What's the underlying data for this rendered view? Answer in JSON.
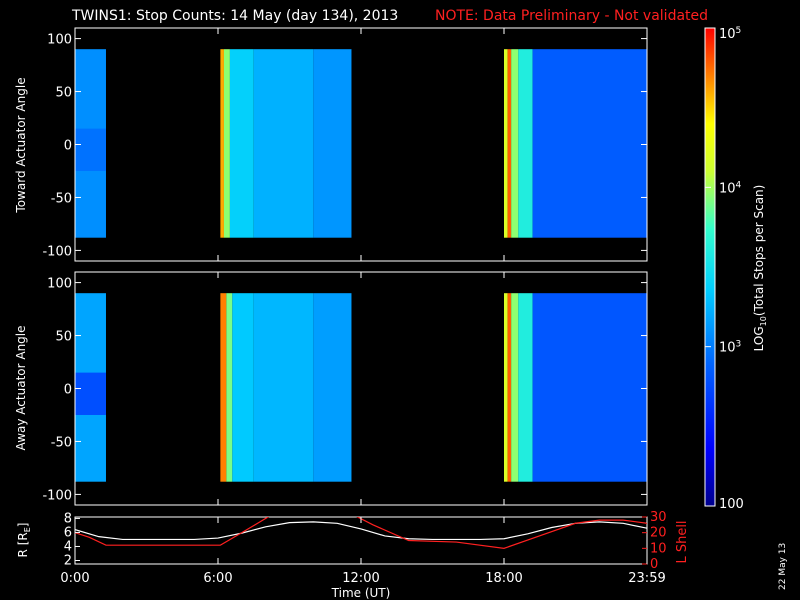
{
  "title": {
    "main": "TWINS1: Stop Counts: 14 May (day 134), 2013",
    "note": "NOTE: Data Preliminary - Not validated"
  },
  "date_stamp": "22 May 13",
  "colors": {
    "background": "#000000",
    "note": "#ff2020",
    "axes": "#ffffff",
    "r_line": "#ffffff",
    "l_shell_line": "#ff2020"
  },
  "chart_data": [
    {
      "type": "heatmap",
      "name": "toward",
      "ylabel": "Toward Actuator Angle",
      "ylim": [
        -110,
        110
      ],
      "yticks": [
        100,
        50,
        0,
        -50,
        -100
      ],
      "y_extent": [
        -88,
        90
      ],
      "xlim_hours": [
        0,
        24
      ],
      "colorscale": "log10",
      "value_range": [
        100,
        100000
      ],
      "coverage_hours": [
        [
          0.0,
          1.3
        ],
        [
          6.1,
          11.6
        ],
        [
          18.0,
          24.0
        ]
      ],
      "columns": [
        {
          "t": [
            0.0,
            1.3
          ],
          "value": 1200,
          "mid_value": 900
        },
        {
          "t": [
            6.1,
            6.25
          ],
          "value": 40000
        },
        {
          "t": [
            6.25,
            6.5
          ],
          "value": 9000
        },
        {
          "t": [
            6.5,
            7.5
          ],
          "value": 2400
        },
        {
          "t": [
            7.5,
            10.0
          ],
          "value": 1700
        },
        {
          "t": [
            10.0,
            11.6
          ],
          "value": 1300
        },
        {
          "t": [
            18.0,
            18.15
          ],
          "value": 15000
        },
        {
          "t": [
            18.15,
            18.3
          ],
          "value": 60000
        },
        {
          "t": [
            18.3,
            18.6
          ],
          "value": 9000
        },
        {
          "t": [
            18.6,
            19.2
          ],
          "value": 4000
        },
        {
          "t": [
            19.2,
            24.0
          ],
          "value": 700
        }
      ]
    },
    {
      "type": "heatmap",
      "name": "away",
      "ylabel": "Away Actuator Angle",
      "ylim": [
        -110,
        110
      ],
      "yticks": [
        100,
        50,
        0,
        -50,
        -100
      ],
      "y_extent": [
        -88,
        90
      ],
      "xlim_hours": [
        0,
        24
      ],
      "colorscale": "log10",
      "value_range": [
        100,
        100000
      ],
      "coverage_hours": [
        [
          0.0,
          1.3
        ],
        [
          6.1,
          11.6
        ],
        [
          18.0,
          24.0
        ]
      ],
      "columns": [
        {
          "t": [
            0.0,
            1.3
          ],
          "value": 1500,
          "mid_value": 600
        },
        {
          "t": [
            6.1,
            6.35
          ],
          "value": 50000
        },
        {
          "t": [
            6.35,
            6.6
          ],
          "value": 8000
        },
        {
          "t": [
            6.6,
            7.5
          ],
          "value": 2200
        },
        {
          "t": [
            7.5,
            10.0
          ],
          "value": 1800
        },
        {
          "t": [
            10.0,
            11.6
          ],
          "value": 1400
        },
        {
          "t": [
            18.0,
            18.15
          ],
          "value": 15000
        },
        {
          "t": [
            18.15,
            18.3
          ],
          "value": 60000
        },
        {
          "t": [
            18.3,
            18.6
          ],
          "value": 9000
        },
        {
          "t": [
            18.6,
            19.2
          ],
          "value": 4000
        },
        {
          "t": [
            19.2,
            24.0
          ],
          "value": 650
        }
      ]
    },
    {
      "type": "line",
      "name": "orbit",
      "xlabel": "Time (UT)",
      "xlim_hours": [
        0,
        24
      ],
      "xticks": [
        {
          "value": 0,
          "label": "0:00"
        },
        {
          "value": 6,
          "label": "6:00"
        },
        {
          "value": 12,
          "label": "12:00"
        },
        {
          "value": 18,
          "label": "18:00"
        },
        {
          "value": 24,
          "label": "23:59"
        }
      ],
      "left_axis": {
        "label": "R [R",
        "subscript": "E",
        "close": "]",
        "ylim": [
          1.5,
          8.2
        ],
        "ticks": [
          2,
          4,
          6,
          8
        ]
      },
      "right_axis": {
        "label": "L Shell",
        "ylim": [
          0,
          30
        ],
        "ticks": [
          0,
          10,
          20,
          30
        ]
      },
      "series": [
        {
          "axis": "left",
          "x": [
            0,
            1,
            2,
            3,
            4,
            5,
            6,
            7,
            8,
            9,
            10,
            11,
            12,
            13,
            14,
            15,
            16,
            17,
            18,
            19,
            20,
            21,
            22,
            23,
            24
          ],
          "y": [
            6.4,
            5.4,
            5.0,
            5.0,
            5.0,
            5.0,
            5.2,
            5.9,
            6.8,
            7.4,
            7.5,
            7.3,
            6.5,
            5.5,
            5.1,
            5.0,
            5.0,
            5.0,
            5.1,
            5.8,
            6.7,
            7.3,
            7.5,
            7.3,
            6.6
          ]
        },
        {
          "axis": "right",
          "x": [
            0,
            0.6,
            1.3,
            2,
            4,
            6.1,
            7.0,
            8.1,
            8.3,
            11.6,
            12.5,
            14.0,
            16,
            18.0,
            19.5,
            21.0,
            22.0,
            23.0,
            24.0
          ],
          "y": [
            20,
            17,
            12,
            12,
            12,
            12,
            20,
            30,
            32,
            32,
            25,
            15,
            14,
            10,
            18,
            26,
            28,
            28,
            26
          ]
        }
      ]
    }
  ],
  "colorbar": {
    "label_prefix": "LOG",
    "label_subscript": "10",
    "label_suffix": "(Total Stops per Scan)",
    "ticks": [
      {
        "value": 100000,
        "base": "10",
        "exp": "5"
      },
      {
        "value": 10000,
        "base": "10",
        "exp": "4"
      },
      {
        "value": 1000,
        "base": "10",
        "exp": "3"
      },
      {
        "value": 100,
        "base": "100",
        "exp": ""
      }
    ]
  }
}
